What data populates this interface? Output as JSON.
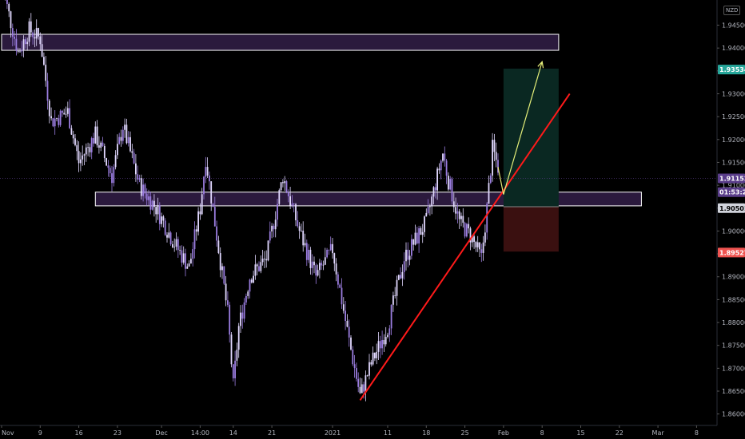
{
  "chart_data": {
    "type": "candlestick",
    "currency_label": "NZD",
    "y_ticks": [
      "1.86000",
      "1.86500",
      "1.87000",
      "1.87500",
      "1.88000",
      "1.88500",
      "1.89000",
      "1.89500",
      "1.90000",
      "1.90500",
      "1.91000",
      "1.91500",
      "1.92000",
      "1.92500",
      "1.93000",
      "1.93500",
      "1.94000",
      "1.94500",
      "1.95000"
    ],
    "ylim": [
      1.8575,
      1.9505
    ],
    "x_tick_labels": [
      "Nov",
      "9",
      "16",
      "23",
      "Dec",
      "14:00",
      "14",
      "21",
      "2021",
      "11",
      "18",
      "25",
      "Feb",
      "8",
      "15",
      "22",
      "Mar",
      "8"
    ],
    "x_tick_dates": [
      "2020-11-02",
      "2020-11-09",
      "2020-11-16",
      "2020-11-23",
      "2020-12-01",
      "2020-12-08",
      "2020-12-14",
      "2020-12-21",
      "2021-01-01",
      "2021-01-11",
      "2021-01-18",
      "2021-01-25",
      "2021-02-01",
      "2021-02-08",
      "2021-02-15",
      "2021-02-22",
      "2021-03-01",
      "2021-03-08"
    ],
    "price_path": [
      {
        "date": "2020-11-02",
        "price": 1.954
      },
      {
        "date": "2020-11-05",
        "price": 1.939
      },
      {
        "date": "2020-11-07",
        "price": 1.944
      },
      {
        "date": "2020-11-09",
        "price": 1.942
      },
      {
        "date": "2020-11-11",
        "price": 1.924
      },
      {
        "date": "2020-11-14",
        "price": 1.926
      },
      {
        "date": "2020-11-16",
        "price": 1.915
      },
      {
        "date": "2020-11-19",
        "price": 1.921
      },
      {
        "date": "2020-11-22",
        "price": 1.912
      },
      {
        "date": "2020-11-24",
        "price": 1.923
      },
      {
        "date": "2020-11-27",
        "price": 1.91
      },
      {
        "date": "2020-11-30",
        "price": 1.905
      },
      {
        "date": "2020-12-03",
        "price": 1.898
      },
      {
        "date": "2020-12-06",
        "price": 1.892
      },
      {
        "date": "2020-12-08",
        "price": 1.905
      },
      {
        "date": "2020-12-09",
        "price": 1.916
      },
      {
        "date": "2020-12-11",
        "price": 1.899
      },
      {
        "date": "2020-12-13",
        "price": 1.882
      },
      {
        "date": "2020-12-14",
        "price": 1.866
      },
      {
        "date": "2020-12-15",
        "price": 1.879
      },
      {
        "date": "2020-12-17",
        "price": 1.89
      },
      {
        "date": "2020-12-20",
        "price": 1.894
      },
      {
        "date": "2020-12-23",
        "price": 1.912
      },
      {
        "date": "2020-12-26",
        "price": 1.9
      },
      {
        "date": "2020-12-29",
        "price": 1.89
      },
      {
        "date": "2021-01-01",
        "price": 1.896
      },
      {
        "date": "2021-01-04",
        "price": 1.876
      },
      {
        "date": "2021-01-06",
        "price": 1.864
      },
      {
        "date": "2021-01-08",
        "price": 1.871
      },
      {
        "date": "2021-01-11",
        "price": 1.879
      },
      {
        "date": "2021-01-14",
        "price": 1.894
      },
      {
        "date": "2021-01-18",
        "price": 1.902
      },
      {
        "date": "2021-01-21",
        "price": 1.917
      },
      {
        "date": "2021-01-22",
        "price": 1.911
      },
      {
        "date": "2021-01-24",
        "price": 1.902
      },
      {
        "date": "2021-01-26",
        "price": 1.899
      },
      {
        "date": "2021-01-28",
        "price": 1.894
      },
      {
        "date": "2021-01-29",
        "price": 1.905
      },
      {
        "date": "2021-01-30",
        "price": 1.918
      },
      {
        "date": "2021-01-31",
        "price": 1.914
      }
    ],
    "zones": [
      {
        "from_date": "2020-11-02",
        "to_date": "2021-02-11",
        "top": 1.943,
        "bottom": 1.9395
      },
      {
        "from_date": "2020-11-19",
        "to_date": "2021-02-26",
        "top": 1.9085,
        "bottom": 1.9055
      }
    ],
    "trendline": {
      "from": {
        "date": "2021-01-06",
        "price": 1.863
      },
      "to": {
        "date": "2021-02-13",
        "price": 1.93
      }
    },
    "projection": [
      {
        "date": "2021-01-31",
        "price": 1.914
      },
      {
        "date": "2021-02-01",
        "price": 1.908
      },
      {
        "date": "2021-02-08",
        "price": 1.937
      }
    ],
    "position": {
      "from_date": "2021-02-01",
      "to_date": "2021-02-11",
      "entry": 1.9053,
      "target": 1.9355,
      "stop": 1.8955,
      "target_color": "#0a2822",
      "stop_color": "#3a1010"
    },
    "price_tags": [
      {
        "label": "1.93534",
        "value": 1.9353,
        "bg": "#26a69a",
        "fg": "#ffffff"
      },
      {
        "label": "1.91152",
        "value": 1.9115,
        "bg": "#5a3d8a",
        "fg": "#ffffff"
      },
      {
        "label": "01:53:25",
        "value": 1.9085,
        "bg": "#5a3d8a",
        "fg": "#ffffff"
      },
      {
        "label": "1.90501",
        "value": 1.905,
        "bg": "#d1d4dc",
        "fg": "#000000"
      },
      {
        "label": "1.89527",
        "value": 1.8953,
        "bg": "#ef5350",
        "fg": "#ffffff"
      }
    ],
    "colors": {
      "candles": "#e1d8ff",
      "candle_accent": "#9b7de0",
      "zone_fill": "#2b1a3d",
      "zone_stroke": "#ffffff",
      "trendline": "#ff1a1a",
      "projection": "#e6f07a",
      "text": "#b2b5be"
    }
  }
}
